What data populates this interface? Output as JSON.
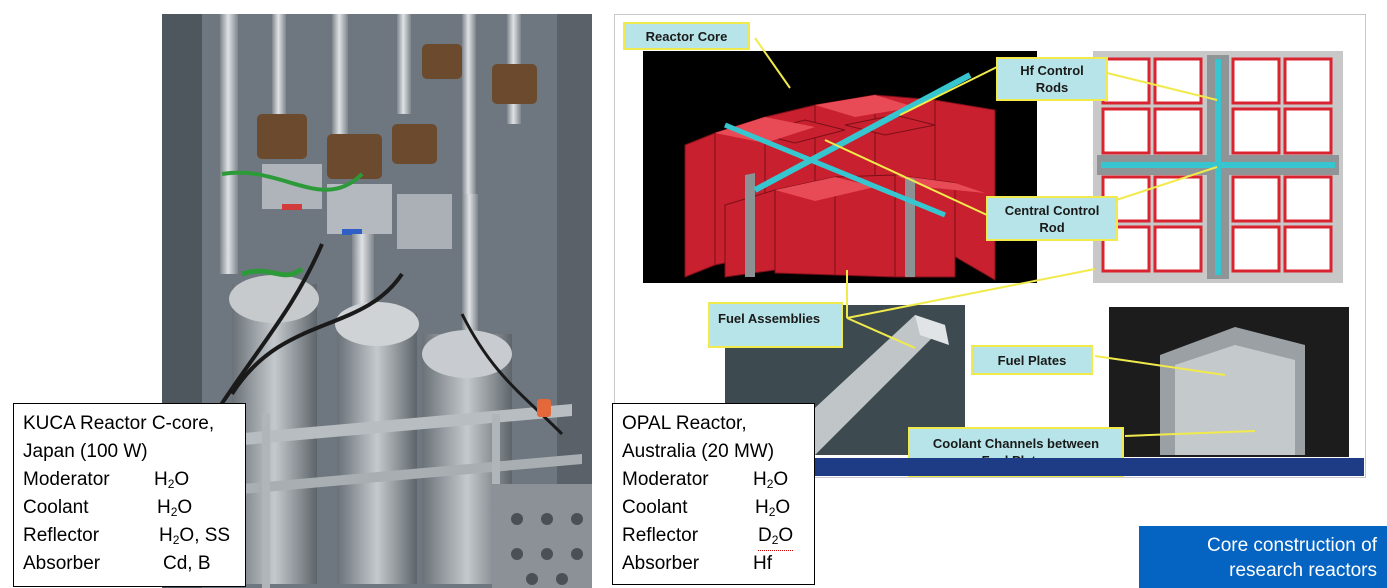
{
  "kuca_box": {
    "title_line1": "KUCA Reactor C-core,",
    "title_line2": "Japan (100 W)",
    "rows": [
      {
        "key": "Moderator",
        "val": "H",
        "sub": "2",
        "rest": "O"
      },
      {
        "key": "Coolant",
        "val": "H",
        "sub": "2",
        "rest": "O"
      },
      {
        "key": "Reflector",
        "val": "H",
        "sub": "2",
        "rest": "O, SS"
      },
      {
        "key": "Absorber",
        "val": "Cd, B",
        "sub": "",
        "rest": ""
      }
    ]
  },
  "opal_box": {
    "title_line1": "OPAL Reactor,",
    "title_line2": "Australia (20 MW)",
    "rows": [
      {
        "key": "Moderator",
        "val": "H",
        "sub": "2",
        "rest": "O"
      },
      {
        "key": "Coolant",
        "val": "H",
        "sub": "2",
        "rest": "O"
      },
      {
        "key": "Reflector",
        "val": "D",
        "sub": "2",
        "rest": "O"
      },
      {
        "key": "Absorber",
        "val": "Hf",
        "sub": "",
        "rest": ""
      }
    ]
  },
  "callouts": {
    "reactor_core": "Reactor Core",
    "hf_rods_1": "Hf Control",
    "hf_rods_2": "Rods",
    "central_rod_1": "Central Control",
    "central_rod_2": "Rod",
    "fuel_assemblies": "Fuel Assemblies",
    "fuel_plates": "Fuel Plates",
    "coolant_1": "Coolant Channels between",
    "coolant_2": "Fuel Plates"
  },
  "caption": {
    "line1": "Core construction of",
    "line2": "research reactors"
  },
  "colors": {
    "callout_fill": "#b7e4e8",
    "callout_border": "#f1ea4c",
    "core_red": "#c8202e",
    "caption_blue": "#0563c1"
  }
}
